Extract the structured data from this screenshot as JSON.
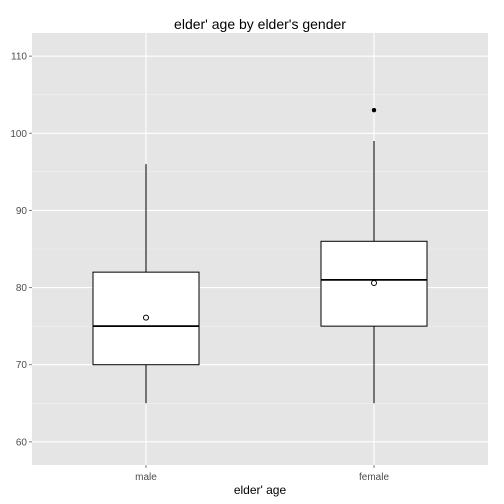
{
  "chart_data": {
    "type": "boxplot",
    "title": "elder' age by elder's gender",
    "xlabel": "elder' age",
    "ylabel": "",
    "categories": [
      "male",
      "female"
    ],
    "ylim": [
      57,
      113
    ],
    "yticks": [
      60,
      70,
      80,
      90,
      100,
      110
    ],
    "grid": true,
    "panel_color": "#e5e5e5",
    "grid_color": "#ffffff",
    "series": [
      {
        "category": "male",
        "min": 65,
        "q1": 70,
        "median": 75,
        "q3": 82,
        "max": 96,
        "mean": 76.1,
        "outliers": []
      },
      {
        "category": "female",
        "min": 65,
        "q1": 75,
        "median": 81,
        "q3": 86,
        "max": 99,
        "mean": 80.6,
        "outliers": [
          103
        ]
      }
    ]
  }
}
